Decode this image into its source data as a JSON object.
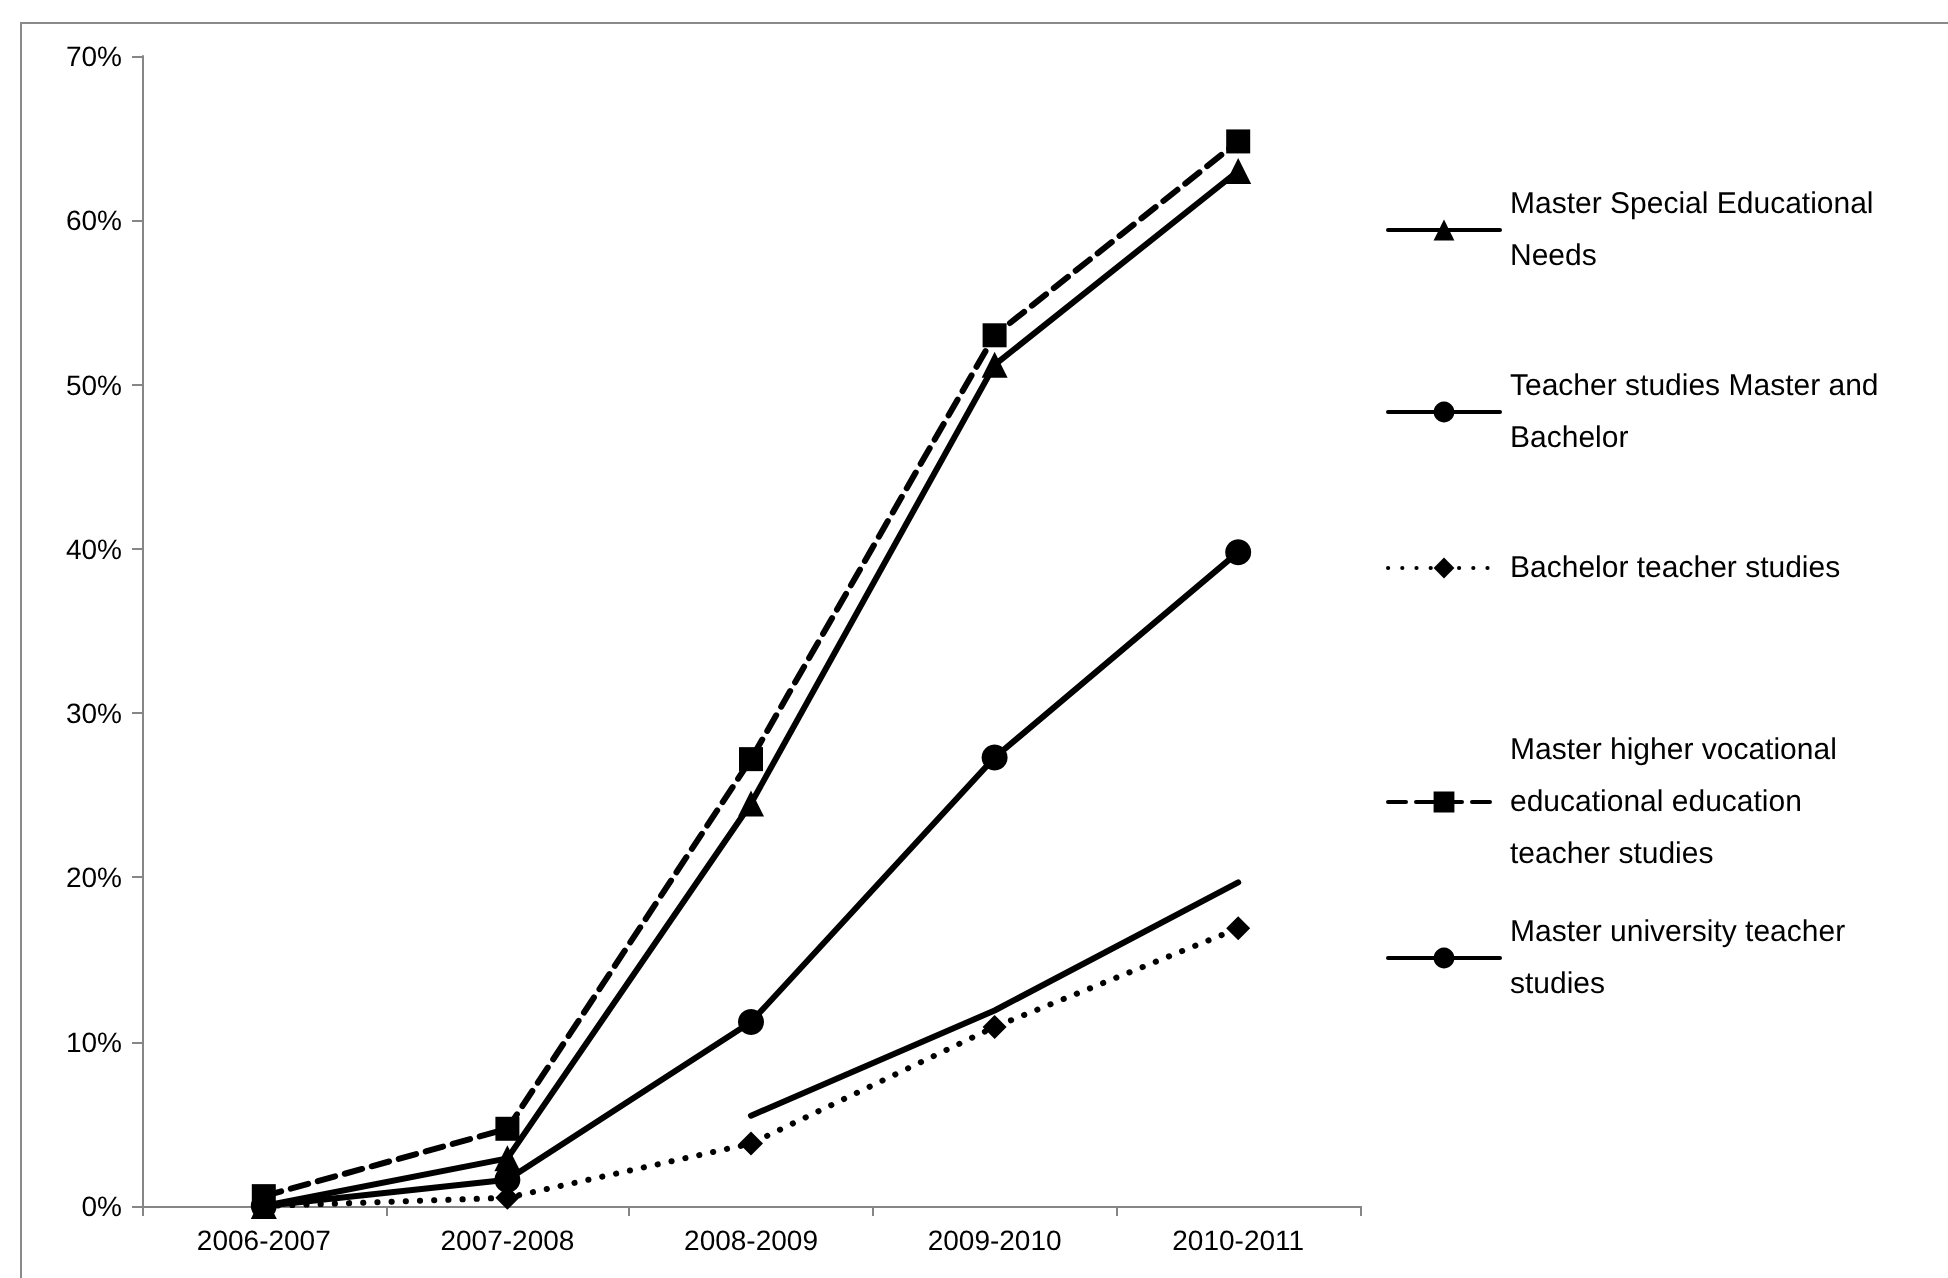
{
  "chart_data": {
    "type": "line",
    "categories": [
      "2006-2007",
      "2007-2008",
      "2008-2009",
      "2009-2010",
      "2010-2011"
    ],
    "series": [
      {
        "name": "Master Special Educational Needs",
        "color": "#000000",
        "marker": "triangle",
        "line_style": "solid",
        "values": [
          0,
          2.9,
          24.5,
          51.2,
          63
        ]
      },
      {
        "name": "Teacher studies Master and Bachelor",
        "color": "#000000",
        "marker": "circle",
        "line_style": "solid",
        "values": [
          0,
          1.6,
          11.2,
          27.3,
          39.8
        ]
      },
      {
        "name": "Bachelor teacher studies",
        "color": "#000000",
        "marker": "diamond",
        "line_style": "dotted",
        "values": [
          0,
          0.5,
          3.8,
          10.9,
          16.9
        ]
      },
      {
        "name": "Master higher vocational educational education teacher studies",
        "color": "#000000",
        "marker": "square",
        "line_style": "dashed",
        "values": [
          0.6,
          4.7,
          27.2,
          53,
          64.8
        ]
      },
      {
        "name": "Master university teacher studies",
        "color": "#000000",
        "marker": "none",
        "line_style": "solid",
        "values": [
          null,
          null,
          5.5,
          11.9,
          19.7
        ]
      }
    ],
    "ylim": [
      0,
      70
    ],
    "yticks": [
      {
        "value": 0,
        "label": "0%"
      },
      {
        "value": 10,
        "label": "10%"
      },
      {
        "value": 20,
        "label": "20%"
      },
      {
        "value": 30,
        "label": "30%"
      },
      {
        "value": 40,
        "label": "40%"
      },
      {
        "value": 50,
        "label": "50%"
      },
      {
        "value": 60,
        "label": "60%"
      },
      {
        "value": 70,
        "label": "70%"
      }
    ],
    "grid": false,
    "legend": "right"
  }
}
